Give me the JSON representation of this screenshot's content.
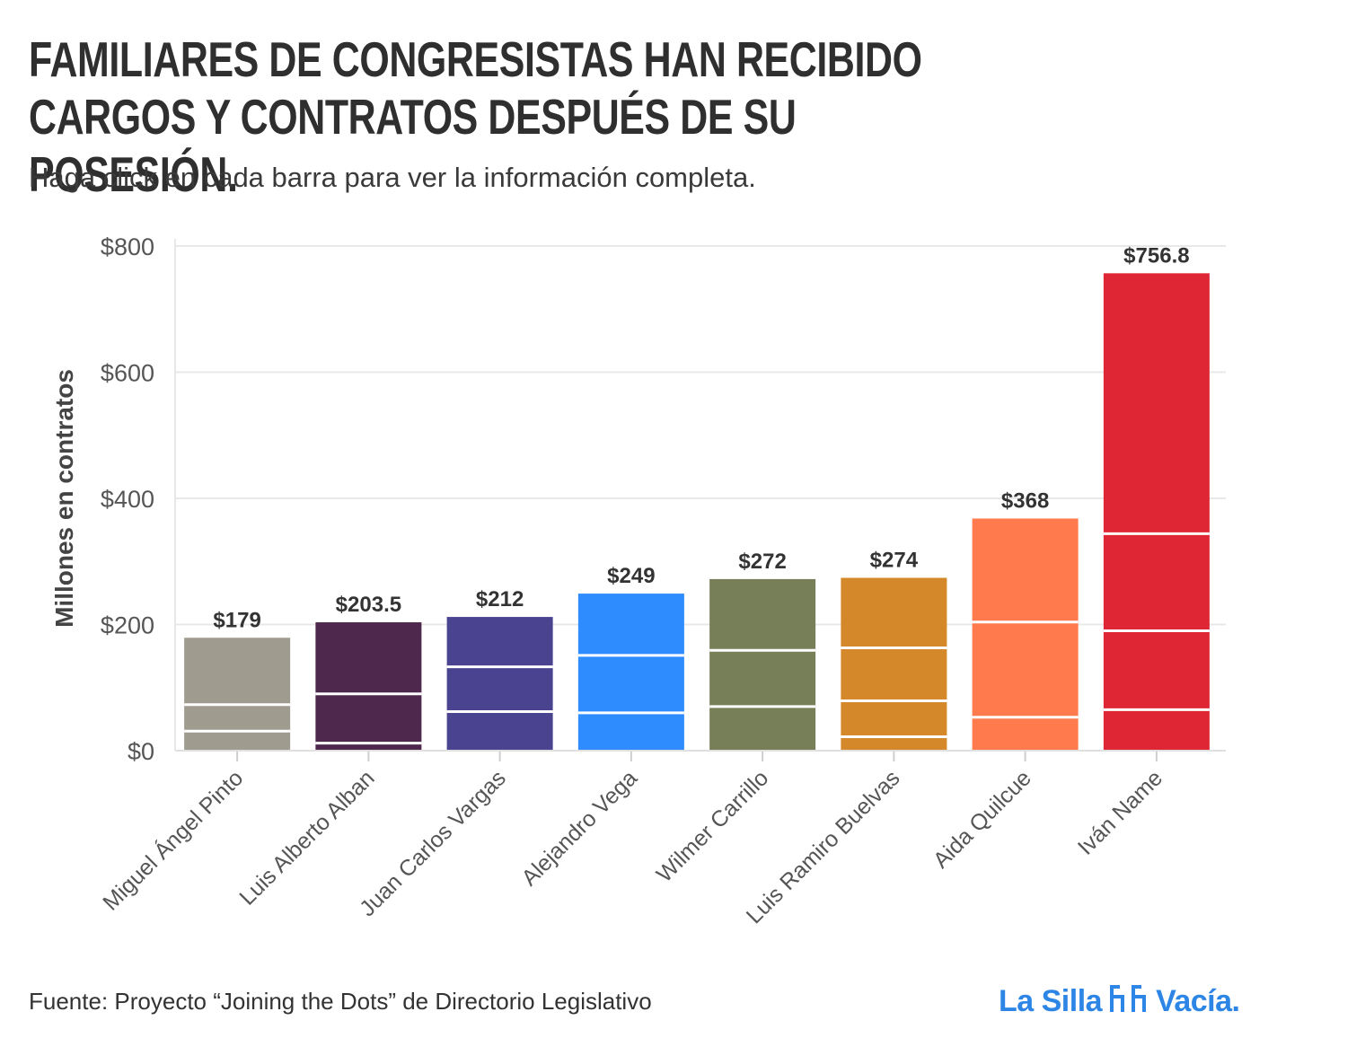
{
  "title": "FAMILIARES DE CONGRESISTAS HAN RECIBIDO CARGOS Y CONTRATOS DESPUÉS DE SU POSESIÓN.",
  "subtitle": "Haga click en cada barra para ver la información completa.",
  "source": "Fuente: Proyecto “Joining the Dots” de Directorio Legislativo",
  "logo": {
    "part1": "La Silla",
    "part2": "Vacía.",
    "icon": "chairs-icon",
    "color": "#2d86e6"
  },
  "chart_data": {
    "type": "bar",
    "ylabel": "Millones en contratos",
    "xlabel": "",
    "ylim": [
      0,
      800
    ],
    "yticks": [
      0,
      200,
      400,
      600,
      800
    ],
    "ytick_labels": [
      "$0",
      "$200",
      "$400",
      "$600",
      "$800"
    ],
    "grid": true,
    "categories": [
      "Miguel Ángel Pinto",
      "Luis Alberto Alban",
      "Juan Carlos Vargas",
      "Alejandro Vega",
      "Wilmer Carrillo",
      "Luis Ramiro Buelvas",
      "Aida Quilcue",
      "Iván Name"
    ],
    "values": [
      179,
      203.5,
      212,
      249,
      272,
      274,
      368,
      756.8
    ],
    "value_labels": [
      "$179",
      "$203.5",
      "$212",
      "$249",
      "$272",
      "$274",
      "$368",
      "$756.8"
    ],
    "colors": [
      "#a09b8f",
      "#4f284d",
      "#4a4490",
      "#2e8cff",
      "#777f58",
      "#d4882a",
      "#ff7a4d",
      "#df2634"
    ],
    "segment_boundaries": [
      [
        31,
        73
      ],
      [
        12,
        90
      ],
      [
        62,
        133
      ],
      [
        60,
        151
      ],
      [
        70,
        159
      ],
      [
        22,
        79,
        163
      ],
      [
        53,
        204
      ],
      [
        65,
        190,
        344
      ]
    ]
  }
}
